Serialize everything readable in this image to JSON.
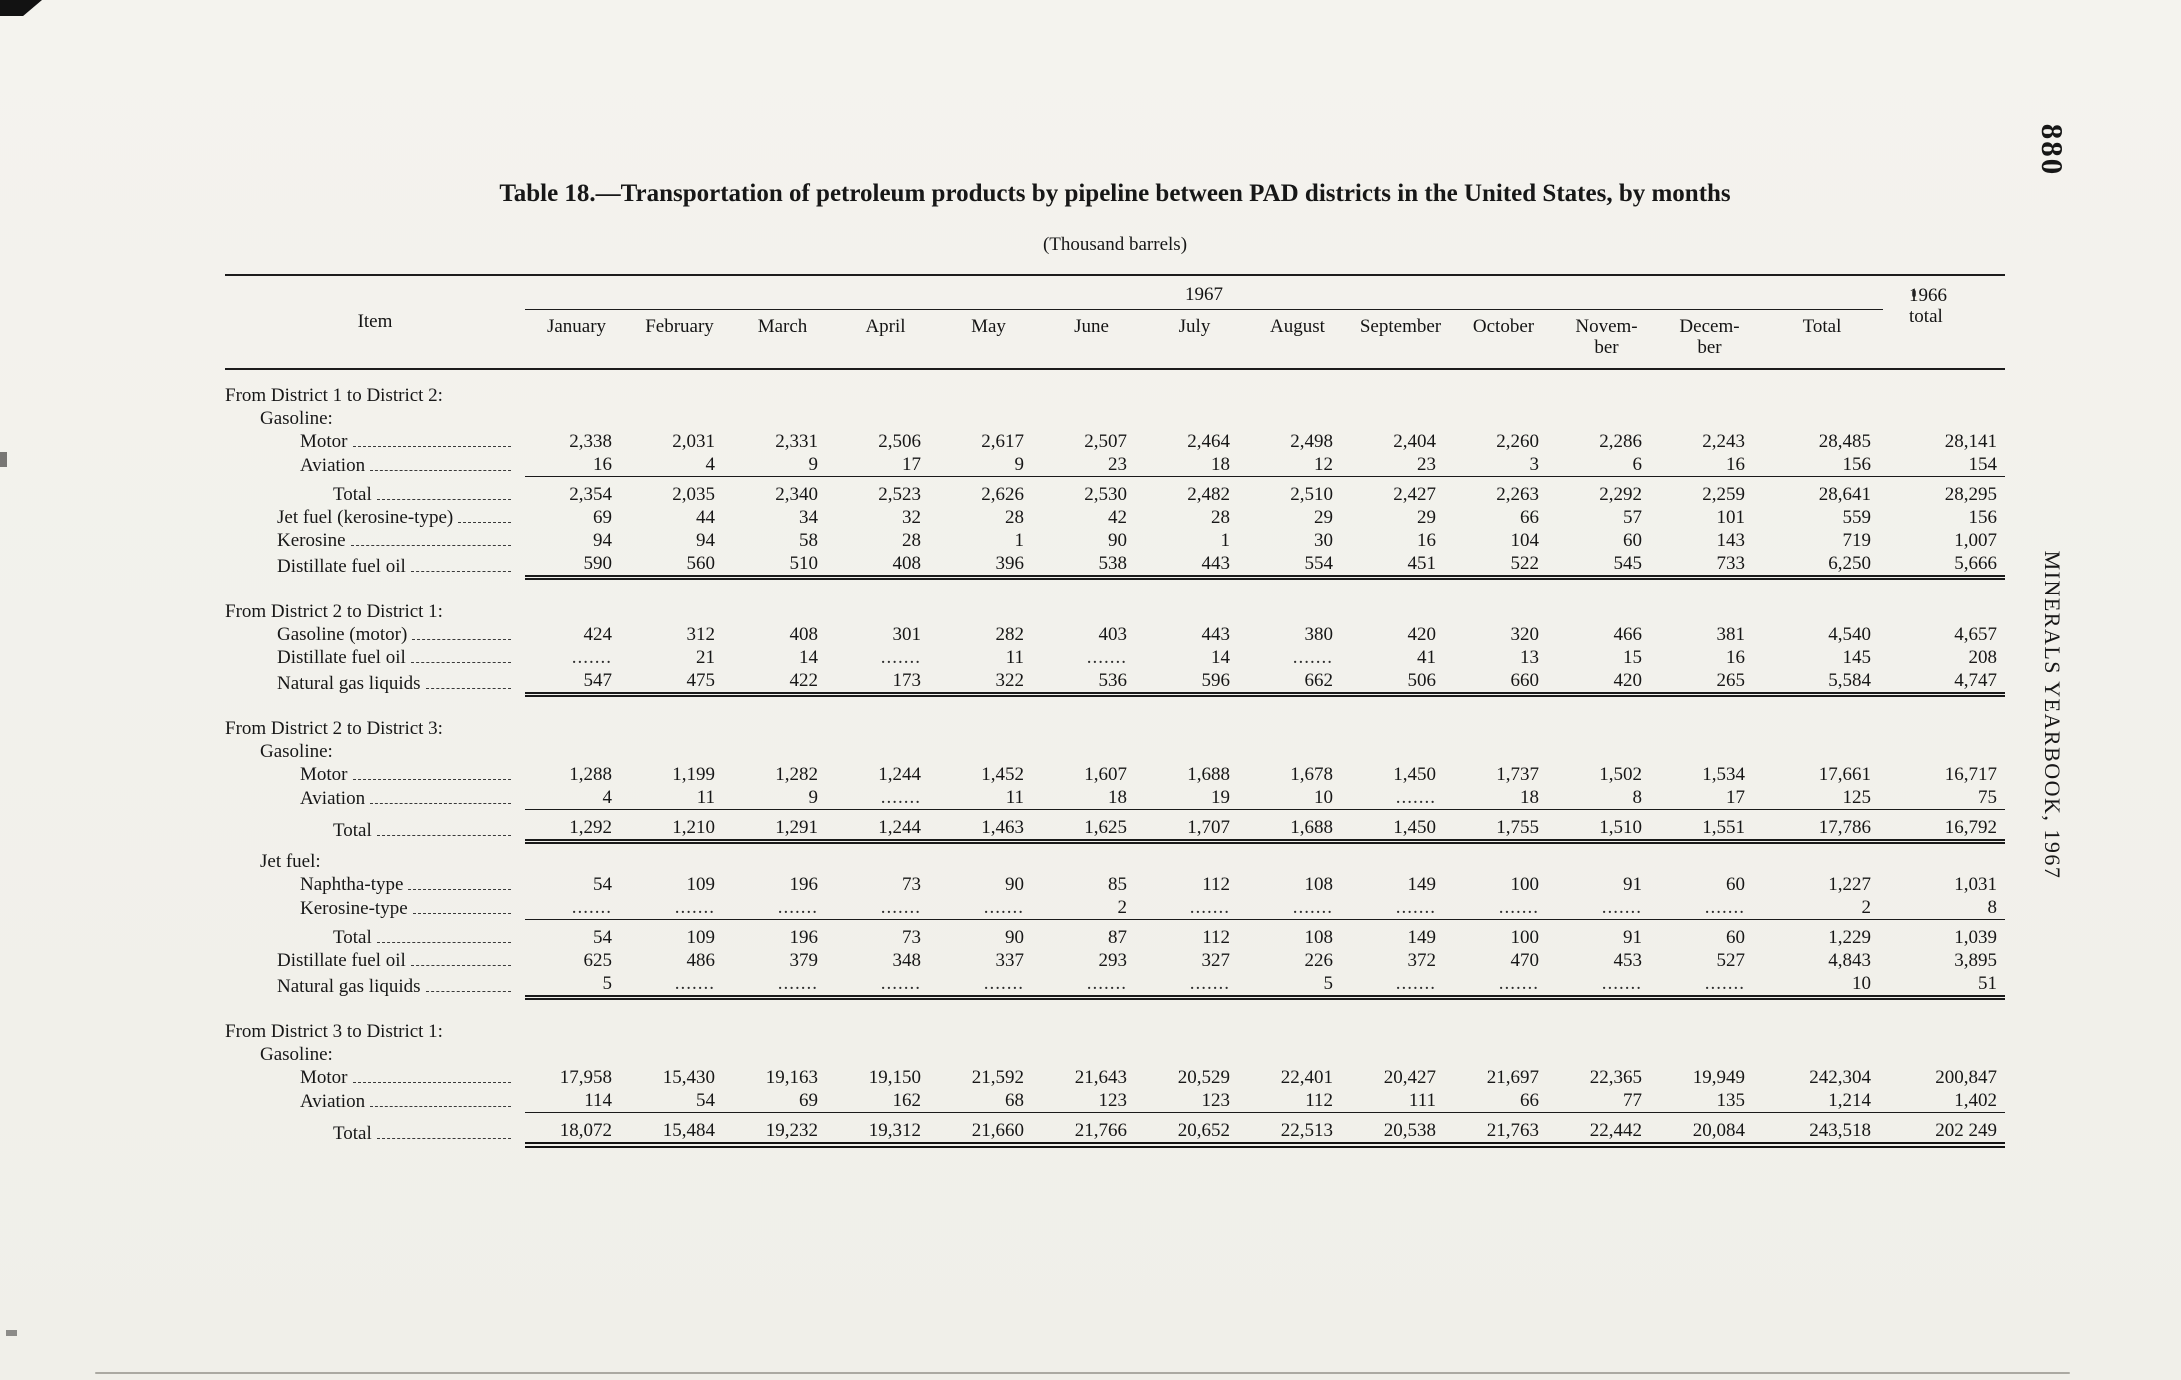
{
  "page": {
    "number": "880",
    "side_text": "MINERALS YEARBOOK, 1967"
  },
  "table": {
    "title": "Table 18.—Transportation of petroleum products by pipeline between PAD districts in the United States, by months",
    "subtitle": "(Thousand barrels)",
    "item_header": "Item",
    "year_header": "1967",
    "col_total_1966": "1966|total",
    "columns": [
      "January",
      "February",
      "March",
      "April",
      "May",
      "June",
      "July",
      "August",
      "September",
      "October",
      "Novem-|ber",
      "Decem-|ber",
      "Total"
    ],
    "rows": [
      {
        "t": "section",
        "label": "From District 1 to District 2:",
        "indent": 0
      },
      {
        "t": "sub",
        "label": "Gasoline:",
        "indent": 1
      },
      {
        "t": "data",
        "label": "Motor",
        "indent": 3,
        "v": [
          "2,338",
          "2,031",
          "2,331",
          "2,506",
          "2,617",
          "2,507",
          "2,464",
          "2,498",
          "2,404",
          "2,260",
          "2,286",
          "2,243",
          "28,485",
          "28,141"
        ]
      },
      {
        "t": "data",
        "label": "Aviation",
        "indent": 3,
        "v": [
          "16",
          "4",
          "9",
          "17",
          "9",
          "23",
          "18",
          "12",
          "23",
          "3",
          "6",
          "16",
          "156",
          "154"
        ]
      },
      {
        "t": "rule",
        "style": "single"
      },
      {
        "t": "data",
        "label": "Total",
        "indent": 4,
        "v": [
          "2,354",
          "2,035",
          "2,340",
          "2,523",
          "2,626",
          "2,530",
          "2,482",
          "2,510",
          "2,427",
          "2,263",
          "2,292",
          "2,259",
          "28,641",
          "28,295"
        ]
      },
      {
        "t": "data",
        "label": "Jet fuel (kerosine-type)",
        "indent": 2,
        "v": [
          "69",
          "44",
          "34",
          "32",
          "28",
          "42",
          "28",
          "29",
          "29",
          "66",
          "57",
          "101",
          "559",
          "156"
        ]
      },
      {
        "t": "data",
        "label": "Kerosine",
        "indent": 2,
        "v": [
          "94",
          "94",
          "58",
          "28",
          "1",
          "90",
          "1",
          "30",
          "16",
          "104",
          "60",
          "143",
          "719",
          "1,007"
        ]
      },
      {
        "t": "data",
        "label": "Distillate fuel oil",
        "indent": 2,
        "v": [
          "590",
          "560",
          "510",
          "408",
          "396",
          "538",
          "443",
          "554",
          "451",
          "522",
          "545",
          "733",
          "6,250",
          "5,666"
        ]
      },
      {
        "t": "rule",
        "style": "double"
      },
      {
        "t": "section",
        "label": "From District 2 to District 1:",
        "indent": 0
      },
      {
        "t": "data",
        "label": "Gasoline (motor)",
        "indent": 2,
        "v": [
          "424",
          "312",
          "408",
          "301",
          "282",
          "403",
          "443",
          "380",
          "420",
          "320",
          "466",
          "381",
          "4,540",
          "4,657"
        ]
      },
      {
        "t": "data",
        "label": "Distillate fuel oil",
        "indent": 2,
        "v": [
          ".......",
          "21",
          "14",
          ".......",
          "11",
          ".......",
          "14",
          ".......",
          "41",
          "13",
          "15",
          "16",
          "145",
          "208"
        ]
      },
      {
        "t": "data",
        "label": "Natural gas liquids",
        "indent": 2,
        "v": [
          "547",
          "475",
          "422",
          "173",
          "322",
          "536",
          "596",
          "662",
          "506",
          "660",
          "420",
          "265",
          "5,584",
          "4,747"
        ]
      },
      {
        "t": "rule",
        "style": "double"
      },
      {
        "t": "section",
        "label": "From District 2 to District 3:",
        "indent": 0
      },
      {
        "t": "sub",
        "label": "Gasoline:",
        "indent": 1
      },
      {
        "t": "data",
        "label": "Motor",
        "indent": 3,
        "v": [
          "1,288",
          "1,199",
          "1,282",
          "1,244",
          "1,452",
          "1,607",
          "1,688",
          "1,678",
          "1,450",
          "1,737",
          "1,502",
          "1,534",
          "17,661",
          "16,717"
        ]
      },
      {
        "t": "data",
        "label": "Aviation",
        "indent": 3,
        "v": [
          "4",
          "11",
          "9",
          ".......",
          "11",
          "18",
          "19",
          "10",
          ".......",
          "18",
          "8",
          "17",
          "125",
          "75"
        ]
      },
      {
        "t": "rule",
        "style": "single"
      },
      {
        "t": "data",
        "label": "Total",
        "indent": 4,
        "v": [
          "1,292",
          "1,210",
          "1,291",
          "1,244",
          "1,463",
          "1,625",
          "1,707",
          "1,688",
          "1,450",
          "1,755",
          "1,510",
          "1,551",
          "17,786",
          "16,792"
        ]
      },
      {
        "t": "rule",
        "style": "double"
      },
      {
        "t": "sub",
        "label": "Jet fuel:",
        "indent": 1
      },
      {
        "t": "data",
        "label": "Naphtha-type",
        "indent": 3,
        "v": [
          "54",
          "109",
          "196",
          "73",
          "90",
          "85",
          "112",
          "108",
          "149",
          "100",
          "91",
          "60",
          "1,227",
          "1,031"
        ]
      },
      {
        "t": "data",
        "label": "Kerosine-type",
        "indent": 3,
        "v": [
          ".......",
          ".......",
          ".......",
          ".......",
          ".......",
          "2",
          ".......",
          ".......",
          ".......",
          ".......",
          ".......",
          ".......",
          "2",
          "8"
        ]
      },
      {
        "t": "rule",
        "style": "single"
      },
      {
        "t": "data",
        "label": "Total",
        "indent": 4,
        "v": [
          "54",
          "109",
          "196",
          "73",
          "90",
          "87",
          "112",
          "108",
          "149",
          "100",
          "91",
          "60",
          "1,229",
          "1,039"
        ]
      },
      {
        "t": "data",
        "label": "Distillate fuel oil",
        "indent": 2,
        "v": [
          "625",
          "486",
          "379",
          "348",
          "337",
          "293",
          "327",
          "226",
          "372",
          "470",
          "453",
          "527",
          "4,843",
          "3,895"
        ]
      },
      {
        "t": "data",
        "label": "Natural gas liquids",
        "indent": 2,
        "v": [
          "5",
          ".......",
          ".......",
          ".......",
          ".......",
          ".......",
          ".......",
          "5",
          ".......",
          ".......",
          ".......",
          ".......",
          "10",
          "51"
        ]
      },
      {
        "t": "rule",
        "style": "double"
      },
      {
        "t": "section",
        "label": "From District 3 to District 1:",
        "indent": 0
      },
      {
        "t": "sub",
        "label": "Gasoline:",
        "indent": 1
      },
      {
        "t": "data",
        "label": "Motor",
        "indent": 3,
        "v": [
          "17,958",
          "15,430",
          "19,163",
          "19,150",
          "21,592",
          "21,643",
          "20,529",
          "22,401",
          "20,427",
          "21,697",
          "22,365",
          "19,949",
          "242,304",
          "200,847"
        ]
      },
      {
        "t": "data",
        "label": "Aviation",
        "indent": 3,
        "v": [
          "114",
          "54",
          "69",
          "162",
          "68",
          "123",
          "123",
          "112",
          "111",
          "66",
          "77",
          "135",
          "1,214",
          "1,402"
        ]
      },
      {
        "t": "rule",
        "style": "single"
      },
      {
        "t": "data",
        "label": "Total",
        "indent": 4,
        "v": [
          "18,072",
          "15,484",
          "19,232",
          "19,312",
          "21,660",
          "21,766",
          "20,652",
          "22,513",
          "20,538",
          "21,763",
          "22,442",
          "20,084",
          "243,518",
          "202 249"
        ]
      },
      {
        "t": "rule",
        "style": "final"
      }
    ]
  }
}
